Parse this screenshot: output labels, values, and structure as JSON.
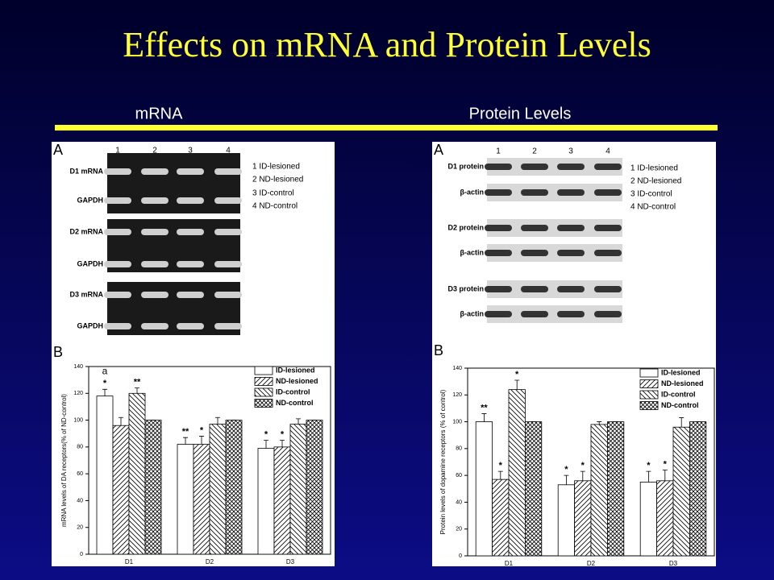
{
  "title": "Effects on mRNA and Protein Levels",
  "columns": [
    "mRNA",
    "Protein Levels"
  ],
  "gels": [
    {
      "label": "A",
      "lanes": [
        "1",
        "2",
        "3",
        "4"
      ],
      "rows": [
        "D1 mRNA",
        "GAPDH",
        "D2 mRNA",
        "GAPDH",
        "D3 mRNA",
        "GAPDH"
      ],
      "legend": [
        "1 ID-lesioned",
        "2 ND-lesioned",
        "3 ID-control",
        "4 ND-control"
      ]
    },
    {
      "label": "A",
      "lanes": [
        "1",
        "2",
        "3",
        "4"
      ],
      "rows": [
        "D1 protein",
        "β-actin",
        "D2 protein",
        "β-actin",
        "D3 protein",
        "β-actin"
      ],
      "legend": [
        "1 ID-lesioned",
        "2 ND-lesioned",
        "3 ID-control",
        "4 ND-control"
      ]
    }
  ],
  "chart_data": [
    {
      "type": "bar",
      "panel_label": "B",
      "ylabel": "mRNA levels of DA receptors(% of ND-control)",
      "categories": [
        "D1",
        "D2",
        "D3"
      ],
      "note": "a",
      "ylim": [
        0,
        140
      ],
      "yticks": [
        0,
        20,
        40,
        60,
        80,
        100,
        120,
        140
      ],
      "legend": "top-right",
      "series": [
        {
          "name": "ID-lesioned",
          "pattern": "none",
          "values": [
            118,
            82,
            79
          ],
          "errors": [
            5,
            5,
            6
          ],
          "significance": [
            "*",
            "**",
            "*"
          ]
        },
        {
          "name": "ND-lesioned",
          "pattern": "diag",
          "values": [
            96,
            82,
            80
          ],
          "errors": [
            6,
            6,
            5
          ],
          "significance": [
            null,
            "*",
            "*"
          ]
        },
        {
          "name": "ID-control",
          "pattern": "back-diag",
          "values": [
            120,
            97,
            97
          ],
          "errors": [
            4,
            5,
            4
          ],
          "significance": [
            "**",
            null,
            null
          ]
        },
        {
          "name": "ND-control",
          "pattern": "cross",
          "values": [
            100,
            100,
            100
          ],
          "errors": [
            0,
            0,
            0
          ],
          "significance": [
            null,
            null,
            null
          ]
        }
      ]
    },
    {
      "type": "bar",
      "panel_label": "B",
      "ylabel": "Protein levels of dopamine receptors (% of control)",
      "categories": [
        "D1",
        "D2",
        "D3"
      ],
      "ylim": [
        0,
        140
      ],
      "yticks": [
        0,
        20,
        40,
        60,
        80,
        100,
        120,
        140
      ],
      "legend": "top-right",
      "series": [
        {
          "name": "ID-lesioned",
          "pattern": "none",
          "values": [
            100,
            53,
            55
          ],
          "errors": [
            6,
            7,
            8
          ],
          "significance": [
            "**",
            "*",
            "*"
          ]
        },
        {
          "name": "ND-lesioned",
          "pattern": "diag",
          "values": [
            57,
            56,
            56
          ],
          "errors": [
            6,
            7,
            8
          ],
          "significance": [
            "*",
            "*",
            "*"
          ]
        },
        {
          "name": "ID-control",
          "pattern": "back-diag",
          "values": [
            124,
            98,
            96
          ],
          "errors": [
            7,
            2,
            7
          ],
          "significance": [
            "*",
            null,
            null
          ]
        },
        {
          "name": "ND-control",
          "pattern": "cross",
          "values": [
            100,
            100,
            100
          ],
          "errors": [
            0,
            0,
            0
          ],
          "significance": [
            null,
            null,
            null
          ]
        }
      ]
    }
  ]
}
